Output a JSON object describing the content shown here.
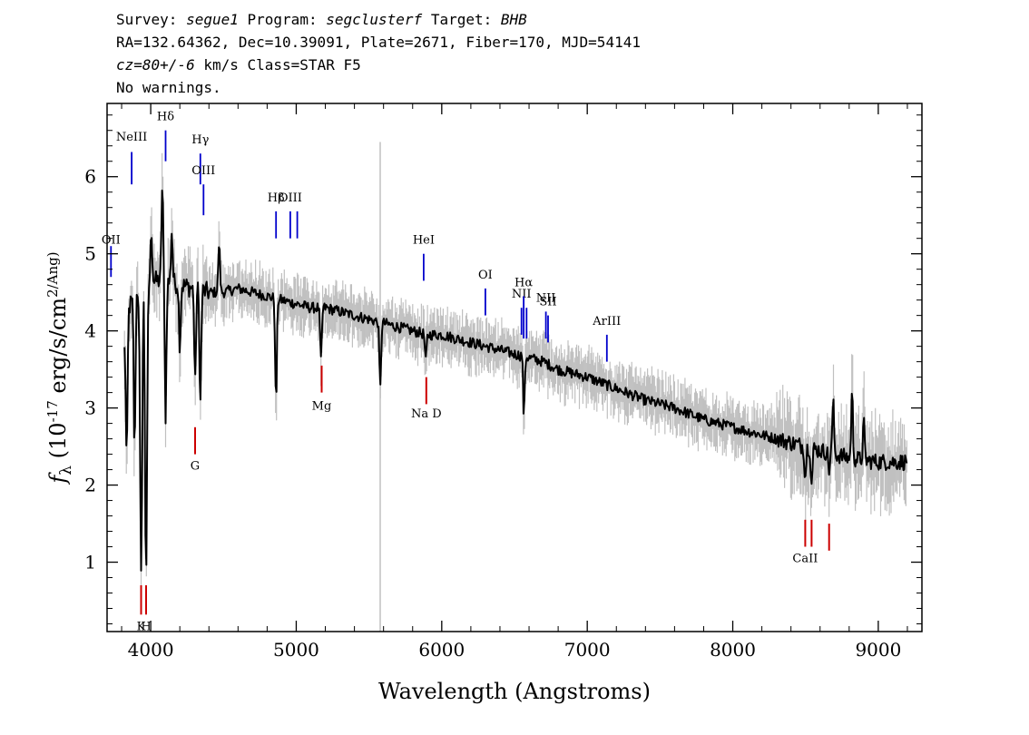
{
  "header": {
    "survey_label": "Survey:",
    "survey": "segue1",
    "program_label": "Program:",
    "program": "segclusterf",
    "target_label": "Target:",
    "target": "BHB",
    "line2": "RA=132.64362, Dec=10.39091, Plate=2671, Fiber=170, MJD=54141",
    "cz": "cz=80+/-6",
    "line3_rest": " km/s Class=STAR F5",
    "line4": "No warnings."
  },
  "colors": {
    "flux": "#000000",
    "error_band": "#c0c0c0",
    "emission_marker": "#0000cc",
    "absorption_marker": "#cc0000"
  },
  "chart_data": {
    "type": "line",
    "title": "",
    "xlabel": "Wavelength (Angstroms)",
    "ylabel": "f_λ (10^-17 erg/s/cm^2/Ang)",
    "xlim": [
      3700,
      9300
    ],
    "ylim": [
      0.1,
      6.95
    ],
    "xticks": [
      4000,
      5000,
      6000,
      7000,
      8000,
      9000
    ],
    "yticks": [
      1,
      2,
      3,
      4,
      5,
      6
    ],
    "grid": false,
    "series": [
      {
        "type": "continuum",
        "x": [
          3820,
          3850,
          3900,
          3950,
          4000,
          4050,
          4100,
          4200,
          4300,
          4400,
          4500,
          4600,
          4700,
          4800,
          4900,
          5000,
          5100,
          5200,
          5300,
          5400,
          5500,
          5600,
          5700,
          5800,
          5900,
          6000,
          6100,
          6200,
          6300,
          6400,
          6500,
          6600,
          6700,
          6800,
          6900,
          7000,
          7200,
          7400,
          7600,
          7800,
          8000,
          8200,
          8400,
          8600,
          8800,
          9000,
          9200
        ],
        "y": [
          3.8,
          4.3,
          4.5,
          4.6,
          4.65,
          4.65,
          4.65,
          4.6,
          4.55,
          4.5,
          4.5,
          4.55,
          4.5,
          4.45,
          4.4,
          4.35,
          4.3,
          4.3,
          4.25,
          4.2,
          4.15,
          4.1,
          4.05,
          4.0,
          3.95,
          3.95,
          3.9,
          3.85,
          3.8,
          3.75,
          3.7,
          3.65,
          3.6,
          3.5,
          3.45,
          3.4,
          3.25,
          3.1,
          3.0,
          2.85,
          2.75,
          2.65,
          2.55,
          2.45,
          2.35,
          2.3,
          2.3
        ]
      },
      {
        "type": "absorption",
        "x": [
          3835,
          3889,
          3934,
          3968,
          4102,
          4200,
          4305,
          4341,
          4861,
          5170,
          5577,
          5890,
          6563,
          8498,
          8542,
          8662
        ],
        "y": [
          2.3,
          2.4,
          0.8,
          0.85,
          2.9,
          3.8,
          3.3,
          3.05,
          3.05,
          3.6,
          3.25,
          3.6,
          2.45,
          2.1,
          2.0,
          2.2
        ]
      },
      {
        "type": "spike",
        "x": [
          4005,
          4080,
          4145,
          4470,
          6560,
          8690,
          8820,
          8900
        ],
        "y": [
          5.3,
          5.95,
          5.3,
          5.15,
          4.2,
          3.05,
          3.2,
          2.8
        ]
      }
    ],
    "line_markers": [
      {
        "label": "NeIII",
        "x": 3869,
        "kind": "emission",
        "y_top": 6.32,
        "y_bot": 5.9,
        "label_y": 6.47
      },
      {
        "label": "Hδ",
        "x": 4102,
        "kind": "emission",
        "y_top": 6.6,
        "y_bot": 6.2,
        "label_y": 6.73
      },
      {
        "label": "Hγ",
        "x": 4341,
        "kind": "emission",
        "y_top": 6.3,
        "y_bot": 5.9,
        "label_y": 6.43
      },
      {
        "label": "OIII",
        "x": 4363,
        "kind": "emission",
        "y_top": 5.9,
        "y_bot": 5.5,
        "label_y": 6.03
      },
      {
        "label": "Hβ",
        "x": 4861,
        "kind": "emission",
        "y_top": 5.55,
        "y_bot": 5.2,
        "label_y": 5.68
      },
      {
        "label": "OIII",
        "x": 4959,
        "kind": "emission",
        "y_top": 5.55,
        "y_bot": 5.2,
        "label_y": 5.68
      },
      {
        "label": "",
        "x": 5007,
        "kind": "emission",
        "y_top": 5.55,
        "y_bot": 5.2,
        "label_y": 5.68
      },
      {
        "label": "HeI",
        "x": 5876,
        "kind": "emission",
        "y_top": 5.0,
        "y_bot": 4.65,
        "label_y": 5.13
      },
      {
        "label": "OI",
        "x": 6300,
        "kind": "emission",
        "y_top": 4.55,
        "y_bot": 4.2,
        "label_y": 4.68
      },
      {
        "label": "NII",
        "x": 6548,
        "kind": "emission",
        "y_top": 4.3,
        "y_bot": 3.95,
        "label_y": 4.43
      },
      {
        "label": "Hα",
        "x": 6563,
        "kind": "emission",
        "y_top": 4.45,
        "y_bot": 3.9,
        "label_y": 4.58
      },
      {
        "label": "",
        "x": 6583,
        "kind": "emission",
        "y_top": 4.3,
        "y_bot": 3.9,
        "label_y": 4.43
      },
      {
        "label": "NII",
        "x": 6716,
        "kind": "emission",
        "y_top": 4.25,
        "y_bot": 3.9,
        "label_y": 4.38
      },
      {
        "label": "SII",
        "x": 6731,
        "kind": "emission",
        "y_top": 4.2,
        "y_bot": 3.85,
        "label_y": 4.33
      },
      {
        "label": "ArIII",
        "x": 7135,
        "kind": "emission",
        "y_top": 3.95,
        "y_bot": 3.6,
        "label_y": 4.08
      },
      {
        "label": "OII",
        "x": 3727,
        "kind": "emission",
        "y_top": 5.1,
        "y_bot": 4.7,
        "label_y": 5.13
      },
      {
        "label": "K",
        "x": 3934,
        "kind": "absorption",
        "y_top": 0.7,
        "y_bot": 0.32,
        "label_y": 0.12
      },
      {
        "label": "H",
        "x": 3968,
        "kind": "absorption",
        "y_top": 0.7,
        "y_bot": 0.32,
        "label_y": 0.12
      },
      {
        "label": "G",
        "x": 4305,
        "kind": "absorption",
        "y_top": 2.75,
        "y_bot": 2.4,
        "label_y": 2.2
      },
      {
        "label": "Mg",
        "x": 5175,
        "kind": "absorption",
        "y_top": 3.55,
        "y_bot": 3.2,
        "label_y": 2.98
      },
      {
        "label": "Na D",
        "x": 5894,
        "kind": "absorption",
        "y_top": 3.4,
        "y_bot": 3.05,
        "label_y": 2.88
      },
      {
        "label": "CaII",
        "x": 8498,
        "kind": "absorption",
        "y_top": 1.55,
        "y_bot": 1.2,
        "label_y": 1.0
      },
      {
        "label": "",
        "x": 8542,
        "kind": "absorption",
        "y_top": 1.55,
        "y_bot": 1.2,
        "label_y": 1.0
      },
      {
        "label": "",
        "x": 8662,
        "kind": "absorption",
        "y_top": 1.5,
        "y_bot": 1.15,
        "label_y": 1.0
      }
    ]
  }
}
